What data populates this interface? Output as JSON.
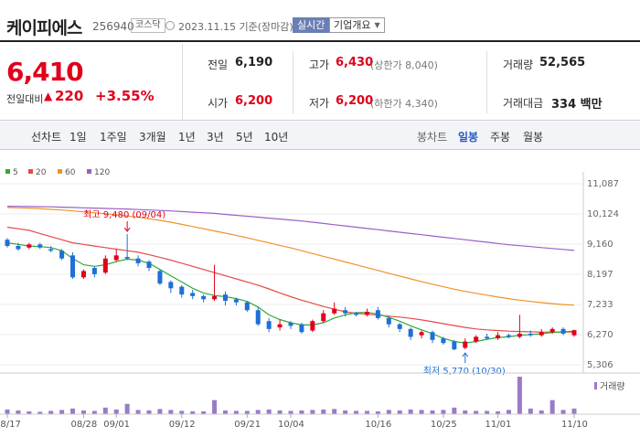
{
  "header": {
    "name": "케이피에스",
    "code": "256940",
    "market": "코스닥",
    "date": "2023.11.15 기준(장마감)",
    "realtime_label": "실시간",
    "overview_label": "기업개요"
  },
  "quote": {
    "price": "6,410",
    "change_label": "전일대비",
    "change_arrow": "▲",
    "change_value": "220",
    "change_pct": "+3.55%",
    "prev_close_label": "전일",
    "prev_close": "6,190",
    "open_label": "시가",
    "open": "6,200",
    "high_label": "고가",
    "high": "6,430",
    "upper_limit": "(상한가 8,040)",
    "low_label": "저가",
    "low": "6,200",
    "lower_limit": "(하한가 4,340)",
    "volume_label": "거래량",
    "volume": "52,565",
    "amount_label": "거래대금",
    "amount": "334 백만"
  },
  "toolbar": {
    "line_chart_label": "선차트",
    "periods": [
      "1일",
      "1주일",
      "3개월",
      "1년",
      "3년",
      "5년",
      "10년"
    ],
    "candle_label": "봉차트",
    "candle_periods": [
      "일봉",
      "주봉",
      "월봉"
    ],
    "candle_selected": "일봉"
  },
  "colors": {
    "up": "#e0001b",
    "down": "#1f6fd6",
    "ma5": "#31a93a",
    "ma20": "#e64a4a",
    "ma60": "#f0922a",
    "ma120": "#9a5fc8"
  },
  "chart_data": {
    "type": "candlestick",
    "legend": [
      {
        "name": "5",
        "color": "#31a93a"
      },
      {
        "name": "20",
        "color": "#e64a4a"
      },
      {
        "name": "60",
        "color": "#f0922a"
      },
      {
        "name": "120",
        "color": "#9a5fc8"
      }
    ],
    "ylim": [
      5306,
      11087
    ],
    "yticks": [
      "11,087",
      "10,124",
      "9,160",
      "8,197",
      "7,233",
      "6,270",
      "5,306"
    ],
    "ytick_values": [
      11087,
      10124,
      9160,
      8197,
      7233,
      6270,
      5306
    ],
    "xlabels": [
      "08/17",
      "08/28",
      "09/01",
      "09/12",
      "09/21",
      "10/04",
      "10/16",
      "10/25",
      "11/01",
      "11/10"
    ],
    "xlabel_index": [
      0,
      7,
      10,
      16,
      22,
      26,
      34,
      40,
      45,
      52
    ],
    "high_label": "최고 9,480 (09/04)",
    "high_value": 9480,
    "high_index": 11,
    "low_label": "최저 5,770 (10/30)",
    "low_value": 5770,
    "low_index": 42,
    "volume_label": "거래량",
    "candles": [
      [
        9300,
        9100,
        9350,
        9050
      ],
      [
        9100,
        9000,
        9200,
        8950
      ],
      [
        9050,
        9150,
        9200,
        9000
      ],
      [
        9150,
        9050,
        9200,
        9000
      ],
      [
        9000,
        8950,
        9100,
        8900
      ],
      [
        8950,
        8700,
        9000,
        8650
      ],
      [
        8800,
        8100,
        8900,
        8050
      ],
      [
        8100,
        8300,
        8350,
        8050
      ],
      [
        8400,
        8200,
        8450,
        8100
      ],
      [
        8250,
        8700,
        8800,
        8200
      ],
      [
        8650,
        8800,
        9000,
        8600
      ],
      [
        8750,
        8700,
        9480,
        8650
      ],
      [
        8700,
        8550,
        8800,
        8450
      ],
      [
        8600,
        8400,
        8650,
        8300
      ],
      [
        8300,
        7900,
        8350,
        7850
      ],
      [
        7950,
        7750,
        8000,
        7600
      ],
      [
        7800,
        7550,
        7850,
        7450
      ],
      [
        7600,
        7500,
        7700,
        7400
      ],
      [
        7500,
        7400,
        7550,
        7300
      ],
      [
        7400,
        7500,
        8500,
        7350
      ],
      [
        7550,
        7350,
        7650,
        7200
      ],
      [
        7400,
        7300,
        7450,
        7200
      ],
      [
        7300,
        7050,
        7350,
        7000
      ],
      [
        7050,
        6600,
        7150,
        6550
      ],
      [
        6700,
        6450,
        6800,
        6350
      ],
      [
        6500,
        6600,
        6750,
        6400
      ],
      [
        6650,
        6550,
        6700,
        6450
      ],
      [
        6600,
        6350,
        6650,
        6300
      ],
      [
        6400,
        6700,
        6750,
        6350
      ],
      [
        6700,
        6950,
        7050,
        6650
      ],
      [
        6950,
        7100,
        7300,
        6900
      ],
      [
        7050,
        6950,
        7150,
        6850
      ],
      [
        6950,
        6900,
        7000,
        6850
      ],
      [
        6900,
        7000,
        7100,
        6850
      ],
      [
        7050,
        6800,
        7150,
        6750
      ],
      [
        6800,
        6600,
        6850,
        6500
      ],
      [
        6600,
        6450,
        6650,
        6350
      ],
      [
        6450,
        6200,
        6500,
        6100
      ],
      [
        6250,
        6350,
        6400,
        6150
      ],
      [
        6350,
        6100,
        6400,
        6000
      ],
      [
        6150,
        6000,
        6200,
        5950
      ],
      [
        6050,
        5800,
        6100,
        5770
      ],
      [
        5850,
        6050,
        6150,
        5800
      ],
      [
        6050,
        6200,
        6250,
        6000
      ],
      [
        6200,
        6150,
        6300,
        6100
      ],
      [
        6150,
        6250,
        6350,
        6100
      ],
      [
        6250,
        6200,
        6300,
        6150
      ],
      [
        6200,
        6300,
        6900,
        6150
      ],
      [
        6300,
        6250,
        6400,
        6200
      ],
      [
        6250,
        6350,
        6450,
        6200
      ],
      [
        6350,
        6450,
        6500,
        6300
      ],
      [
        6450,
        6300,
        6500,
        6250
      ],
      [
        6250,
        6410,
        6430,
        6200
      ]
    ],
    "volumes": [
      10,
      8,
      6,
      5,
      7,
      9,
      12,
      8,
      7,
      14,
      10,
      22,
      9,
      8,
      11,
      9,
      7,
      6,
      6,
      30,
      8,
      7,
      7,
      9,
      10,
      8,
      7,
      8,
      9,
      10,
      11,
      8,
      7,
      7,
      6,
      9,
      8,
      10,
      9,
      8,
      9,
      14,
      8,
      7,
      7,
      6,
      9,
      80,
      12,
      8,
      30,
      9,
      12
    ],
    "ma5": [
      9200,
      9150,
      9100,
      9080,
      9050,
      8950,
      8700,
      8500,
      8450,
      8500,
      8600,
      8680,
      8650,
      8550,
      8350,
      8150,
      7950,
      7750,
      7600,
      7520,
      7480,
      7420,
      7330,
      7150,
      6900,
      6750,
      6650,
      6580,
      6580,
      6650,
      6800,
      6900,
      6970,
      6980,
      6930,
      6820,
      6700,
      6550,
      6420,
      6300,
      6150,
      6050,
      6000,
      6050,
      6120,
      6180,
      6200,
      6250,
      6270,
      6300,
      6340,
      6360,
      6380
    ],
    "ma20": [
      9700,
      9650,
      9600,
      9500,
      9400,
      9300,
      9200,
      9150,
      9100,
      9050,
      9000,
      8950,
      8900,
      8820,
      8740,
      8650,
      8550,
      8450,
      8350,
      8250,
      8150,
      8050,
      7950,
      7850,
      7730,
      7600,
      7480,
      7370,
      7270,
      7170,
      7080,
      7000,
      6950,
      6920,
      6890,
      6860,
      6830,
      6790,
      6740,
      6680,
      6620,
      6560,
      6500,
      6450,
      6420,
      6400,
      6380,
      6370,
      6360,
      6350,
      6350,
      6350,
      6350
    ],
    "ma60": [
      10330,
      10320,
      10310,
      10290,
      10270,
      10250,
      10220,
      10190,
      10160,
      10130,
      10100,
      10060,
      10020,
      9970,
      9920,
      9860,
      9790,
      9720,
      9650,
      9580,
      9510,
      9440,
      9360,
      9280,
      9200,
      9120,
      9040,
      8950,
      8860,
      8770,
      8680,
      8590,
      8500,
      8410,
      8320,
      8230,
      8140,
      8050,
      7960,
      7880,
      7800,
      7720,
      7650,
      7590,
      7530,
      7470,
      7420,
      7370,
      7330,
      7290,
      7260,
      7230,
      7210
    ],
    "ma120": [
      10370,
      10365,
      10360,
      10355,
      10350,
      10340,
      10330,
      10320,
      10310,
      10300,
      10290,
      10280,
      10265,
      10250,
      10235,
      10220,
      10200,
      10180,
      10160,
      10140,
      10110,
      10080,
      10050,
      10020,
      9990,
      9960,
      9930,
      9900,
      9860,
      9820,
      9780,
      9740,
      9700,
      9660,
      9620,
      9580,
      9540,
      9500,
      9460,
      9420,
      9380,
      9340,
      9300,
      9260,
      9220,
      9180,
      9140,
      9110,
      9080,
      9050,
      9020,
      8990,
      8960
    ]
  }
}
